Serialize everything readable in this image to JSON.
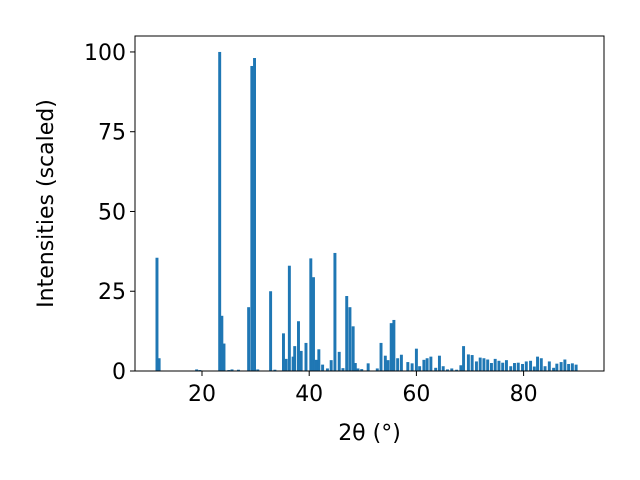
{
  "chart_data": {
    "type": "bar",
    "title": "",
    "xlabel": "2θ (°)",
    "ylabel": "Intensities (scaled)",
    "xlim": [
      7.5,
      95
    ],
    "ylim": [
      0,
      105
    ],
    "xticks": [
      20,
      40,
      60,
      80
    ],
    "yticks": [
      0,
      25,
      50,
      75,
      100
    ],
    "grid": false,
    "color": "#1f77b4",
    "x": [
      11.6,
      12.0,
      19.0,
      19.6,
      23.3,
      23.7,
      24.1,
      25.0,
      25.6,
      26.8,
      28.7,
      29.3,
      29.8,
      30.4,
      32.8,
      33.6,
      35.2,
      35.7,
      36.3,
      37.0,
      37.3,
      38.0,
      38.5,
      39.4,
      40.3,
      40.8,
      41.3,
      41.8,
      42.5,
      43.4,
      44.1,
      44.8,
      45.6,
      46.3,
      47.0,
      47.6,
      48.2,
      48.6,
      49.1,
      49.8,
      51.0,
      52.7,
      53.4,
      54.2,
      54.7,
      55.3,
      55.8,
      56.5,
      57.2,
      58.4,
      59.2,
      60.0,
      60.6,
      61.4,
      62.0,
      62.7,
      63.6,
      64.3,
      65.0,
      65.8,
      66.6,
      67.5,
      68.3,
      68.8,
      69.7,
      70.4,
      71.2,
      71.9,
      72.6,
      73.3,
      74.0,
      74.7,
      75.4,
      76.1,
      76.8,
      77.6,
      78.3,
      79.0,
      79.8,
      80.5,
      81.3,
      82.0,
      82.6,
      83.3,
      84.0,
      84.8,
      85.6,
      86.2,
      87.0,
      87.7,
      88.4,
      89.1,
      89.8
    ],
    "values": [
      35.5,
      4.0,
      0.5,
      0.3,
      100,
      17.3,
      8.6,
      0.3,
      0.5,
      0.4,
      20.0,
      95.6,
      98.1,
      0.5,
      25.0,
      0.4,
      11.8,
      3.8,
      33.0,
      4.5,
      7.8,
      15.6,
      6.3,
      8.8,
      35.3,
      29.4,
      3.5,
      6.8,
      2.0,
      0.8,
      3.4,
      37.0,
      6.0,
      0.9,
      23.5,
      20.0,
      14.0,
      2.5,
      0.8,
      0.6,
      2.4,
      0.8,
      8.8,
      4.8,
      3.4,
      15.0,
      16.0,
      4.0,
      5.1,
      2.8,
      2.4,
      7.0,
      1.5,
      3.5,
      4.0,
      4.5,
      1.0,
      4.8,
      1.5,
      0.5,
      0.8,
      0.4,
      1.8,
      7.8,
      5.2,
      5.0,
      3.0,
      4.2,
      4.0,
      3.6,
      2.5,
      3.8,
      3.2,
      2.6,
      3.4,
      1.5,
      2.5,
      2.6,
      2.2,
      3.0,
      3.2,
      1.4,
      4.5,
      4.0,
      1.5,
      3.0,
      1.0,
      2.3,
      2.8,
      3.6,
      2.2,
      2.4,
      2.0
    ]
  }
}
